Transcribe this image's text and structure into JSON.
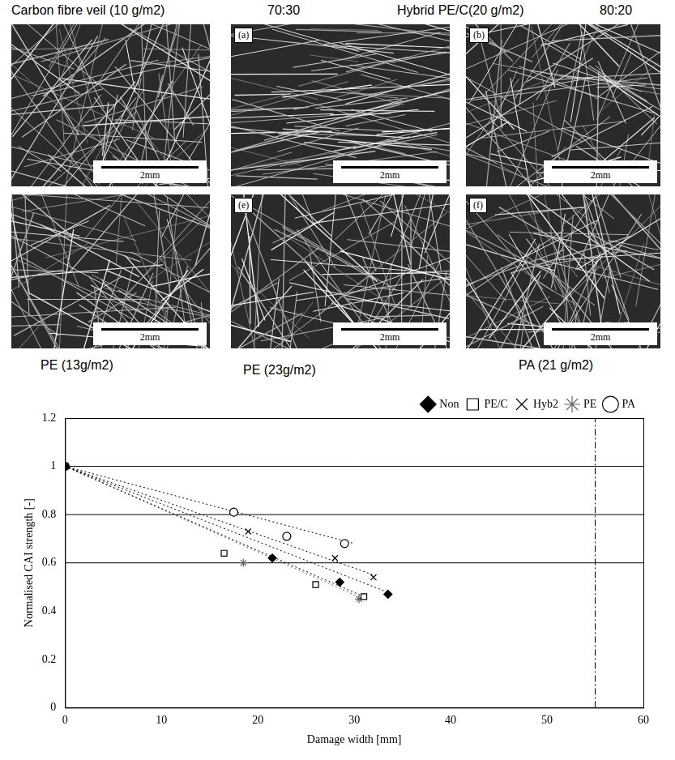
{
  "figure": {
    "top_labels": [
      "Carbon fibre veil (10 g/m2)",
      "70:30",
      "Hybrid PE/C(20 g/m2)",
      "80:20"
    ],
    "bottom_labels": [
      "PE (13g/m2)",
      "PE (23g/m2)",
      "PA (21 g/m2)"
    ],
    "panels": [
      {
        "scale_bar": "2mm"
      },
      {
        "letter": "(a)",
        "scale_bar": "2mm"
      },
      {
        "letter": "(b)",
        "scale_bar": "2mm"
      },
      {
        "scale_bar": "2mm"
      },
      {
        "letter": "(e)",
        "scale_bar": "2mm"
      },
      {
        "letter": "(f)",
        "scale_bar": "2mm"
      }
    ]
  },
  "chart_data": {
    "type": "scatter",
    "x_label": "Damage width [mm]",
    "y_label": "Normalised CAI strength [-]",
    "xlim": [
      0,
      60
    ],
    "xticks": [
      0,
      10,
      20,
      30,
      40,
      50,
      60
    ],
    "ylim": [
      0,
      1.2
    ],
    "yticks": [
      0,
      0.2,
      0.4,
      0.6,
      0.8,
      1,
      1.2
    ],
    "grid": false,
    "legend": "top right",
    "reference_lines_y": [
      0.6,
      0.8,
      1
    ],
    "reference_line_x": 55,
    "series": [
      {
        "name": "Non",
        "marker": "filled_diamond",
        "color": "#000000",
        "x": [
          0,
          21.5,
          28.5,
          33.5
        ],
        "values": [
          1,
          0.62,
          0.52,
          0.47
        ],
        "trend": {
          "x": [
            0,
            34
          ],
          "values": [
            1,
            0.47
          ]
        }
      },
      {
        "name": "PE/C",
        "marker": "open_square",
        "color": "#000000",
        "x": [
          0,
          16.5,
          26,
          31
        ],
        "values": [
          1,
          0.64,
          0.51,
          0.46
        ],
        "trend": {
          "x": [
            0,
            31
          ],
          "values": [
            1,
            0.46
          ]
        }
      },
      {
        "name": "Hyb2",
        "marker": "x",
        "color": "#000000",
        "x": [
          0,
          19,
          28,
          32
        ],
        "values": [
          1,
          0.73,
          0.62,
          0.54
        ],
        "trend": {
          "x": [
            0,
            32
          ],
          "values": [
            1,
            0.55
          ]
        }
      },
      {
        "name": "PE",
        "marker": "star",
        "color": "#666666",
        "x": [
          0,
          18.5,
          30.5
        ],
        "values": [
          1,
          0.6,
          0.45
        ],
        "trend": {
          "x": [
            0,
            31
          ],
          "values": [
            1,
            0.45
          ]
        }
      },
      {
        "name": "PA",
        "marker": "open_circle",
        "color": "#000000",
        "x": [
          0,
          17.5,
          23,
          29
        ],
        "values": [
          1,
          0.81,
          0.71,
          0.68
        ],
        "trend": {
          "x": [
            0,
            30
          ],
          "values": [
            1,
            0.68
          ]
        }
      }
    ]
  }
}
